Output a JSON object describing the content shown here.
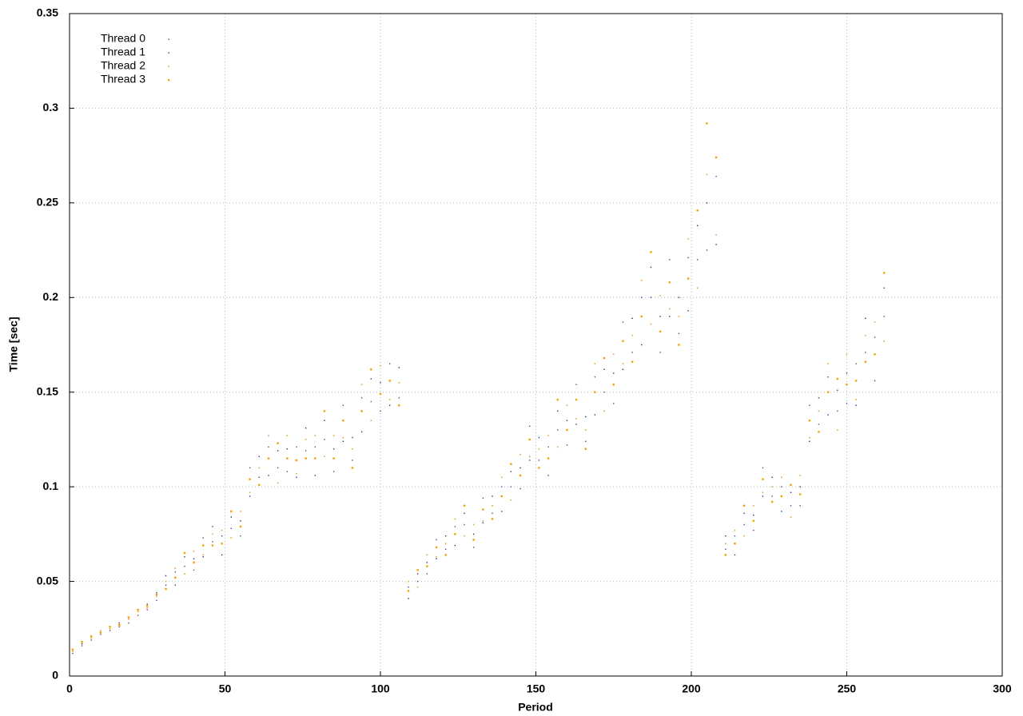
{
  "chart_data": {
    "type": "scatter",
    "xlabel": "Period",
    "ylabel": "Time [sec]",
    "xlim": [
      0,
      300
    ],
    "xticks": [
      0,
      50,
      100,
      150,
      200,
      250,
      300
    ],
    "ylim": [
      0,
      0.35
    ],
    "yticks": [
      0,
      0.05,
      0.1,
      0.15,
      0.2,
      0.25,
      0.3,
      0.35
    ],
    "grid": true,
    "legend": "top-left",
    "x": [
      1,
      4,
      7,
      10,
      13,
      16,
      19,
      22,
      25,
      28,
      31,
      34,
      37,
      40,
      43,
      46,
      49,
      52,
      55,
      58,
      61,
      64,
      67,
      70,
      73,
      76,
      79,
      82,
      85,
      88,
      91,
      94,
      97,
      100,
      103,
      106,
      109,
      112,
      115,
      118,
      121,
      124,
      127,
      130,
      133,
      136,
      139,
      142,
      145,
      148,
      151,
      154,
      157,
      160,
      163,
      166,
      169,
      172,
      175,
      178,
      181,
      184,
      187,
      190,
      193,
      196,
      199,
      202,
      205,
      208,
      211,
      214,
      217,
      220,
      223,
      226,
      229,
      232,
      235,
      238,
      241,
      244,
      247,
      250,
      253,
      256,
      259,
      262
    ],
    "series": [
      {
        "name": "Thread 0",
        "color": "#7030a0",
        "values": [
          0.012,
          0.016,
          0.019,
          0.022,
          0.024,
          0.026,
          0.028,
          0.032,
          0.035,
          0.04,
          0.048,
          0.055,
          0.058,
          0.056,
          0.073,
          0.071,
          0.074,
          0.078,
          0.074,
          0.11,
          0.105,
          0.121,
          0.11,
          0.108,
          0.121,
          0.119,
          0.121,
          0.125,
          0.108,
          0.143,
          0.114,
          0.147,
          0.145,
          0.14,
          0.165,
          0.147,
          0.047,
          0.05,
          0.054,
          0.072,
          0.067,
          0.079,
          0.08,
          0.068,
          0.094,
          0.086,
          0.1,
          0.1,
          0.099,
          0.132,
          0.114,
          0.121,
          0.13,
          0.122,
          0.154,
          0.124,
          0.158,
          0.15,
          0.144,
          0.187,
          0.171,
          0.2,
          0.2,
          0.171,
          0.22,
          0.181,
          0.221,
          0.22,
          0.225,
          0.264,
          0.067,
          0.074,
          0.08,
          0.077,
          0.11,
          0.095,
          0.1,
          0.09,
          0.09,
          0.143,
          0.133,
          0.158,
          0.14,
          0.144,
          0.165,
          0.171,
          0.179,
          0.19
        ]
      },
      {
        "name": "Thread 1",
        "color": "#303080",
        "values": [
          0.014,
          0.017,
          0.021,
          0.023,
          0.026,
          0.028,
          0.031,
          0.035,
          0.038,
          0.044,
          0.053,
          0.048,
          0.063,
          0.062,
          0.063,
          0.079,
          0.064,
          0.084,
          0.082,
          0.095,
          0.116,
          0.106,
          0.119,
          0.12,
          0.105,
          0.131,
          0.106,
          0.135,
          0.12,
          0.124,
          0.126,
          0.129,
          0.157,
          0.155,
          0.143,
          0.163,
          0.041,
          0.054,
          0.06,
          0.062,
          0.074,
          0.069,
          0.086,
          0.075,
          0.081,
          0.095,
          0.087,
          0.108,
          0.11,
          0.114,
          0.126,
          0.106,
          0.14,
          0.135,
          0.133,
          0.137,
          0.138,
          0.162,
          0.16,
          0.162,
          0.189,
          0.175,
          0.216,
          0.19,
          0.19,
          0.2,
          0.193,
          0.238,
          0.25,
          0.228,
          0.074,
          0.064,
          0.086,
          0.085,
          0.095,
          0.105,
          0.087,
          0.097,
          0.1,
          0.124,
          0.147,
          0.138,
          0.151,
          0.16,
          0.143,
          0.189,
          0.156,
          0.205
        ]
      },
      {
        "name": "Thread 2",
        "color": "#e8a040",
        "values": [
          0.013,
          0.018,
          0.02,
          0.024,
          0.025,
          0.027,
          0.03,
          0.034,
          0.036,
          0.042,
          0.05,
          0.057,
          0.054,
          0.066,
          0.064,
          0.075,
          0.077,
          0.073,
          0.087,
          0.097,
          0.11,
          0.127,
          0.102,
          0.127,
          0.107,
          0.125,
          0.127,
          0.116,
          0.127,
          0.126,
          0.12,
          0.154,
          0.135,
          0.164,
          0.146,
          0.155,
          0.05,
          0.047,
          0.064,
          0.063,
          0.07,
          0.083,
          0.074,
          0.08,
          0.082,
          0.09,
          0.105,
          0.093,
          0.117,
          0.116,
          0.12,
          0.127,
          0.121,
          0.143,
          0.136,
          0.13,
          0.165,
          0.14,
          0.17,
          0.165,
          0.18,
          0.209,
          0.186,
          0.201,
          0.194,
          0.19,
          0.231,
          0.205,
          0.265,
          0.233,
          0.07,
          0.077,
          0.074,
          0.09,
          0.097,
          0.1,
          0.105,
          0.084,
          0.106,
          0.126,
          0.14,
          0.165,
          0.13,
          0.17,
          0.146,
          0.18,
          0.187,
          0.177
        ]
      },
      {
        "name": "Thread 3",
        "color": "#f5a000",
        "values": [
          0.014,
          0.018,
          0.021,
          0.023,
          0.026,
          0.027,
          0.031,
          0.035,
          0.037,
          0.043,
          0.046,
          0.052,
          0.065,
          0.06,
          0.069,
          0.069,
          0.07,
          0.087,
          0.079,
          0.104,
          0.101,
          0.115,
          0.123,
          0.115,
          0.114,
          0.115,
          0.115,
          0.14,
          0.115,
          0.135,
          0.11,
          0.14,
          0.162,
          0.149,
          0.156,
          0.143,
          0.045,
          0.056,
          0.058,
          0.068,
          0.064,
          0.075,
          0.09,
          0.072,
          0.088,
          0.083,
          0.095,
          0.112,
          0.106,
          0.125,
          0.11,
          0.115,
          0.146,
          0.13,
          0.146,
          0.12,
          0.15,
          0.168,
          0.154,
          0.177,
          0.166,
          0.19,
          0.224,
          0.182,
          0.208,
          0.175,
          0.21,
          0.246,
          0.292,
          0.274,
          0.064,
          0.07,
          0.09,
          0.082,
          0.104,
          0.092,
          0.095,
          0.101,
          0.096,
          0.135,
          0.129,
          0.15,
          0.157,
          0.154,
          0.156,
          0.166,
          0.17,
          0.213
        ]
      }
    ]
  }
}
